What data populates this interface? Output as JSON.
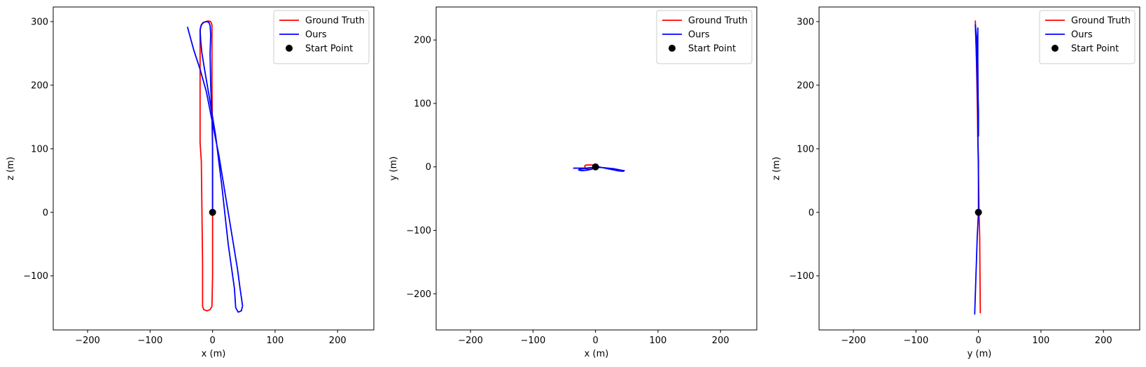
{
  "chart_data": [
    {
      "type": "line",
      "xlabel": "x (m)",
      "ylabel": "z (m)",
      "xlim": [
        -255,
        258
      ],
      "ylim": [
        -185,
        323
      ],
      "xticks": [
        -200,
        -100,
        0,
        100,
        200
      ],
      "yticks": [
        -100,
        0,
        100,
        200,
        300
      ],
      "xtick_labels": [
        "−200",
        "−100",
        "0",
        "100",
        "200"
      ],
      "ytick_labels": [
        "−100",
        "0",
        "100",
        "200",
        "300"
      ],
      "legend": [
        "Ground Truth",
        "Ours",
        "Start Point"
      ],
      "legend_position": "top-right",
      "series": [
        {
          "name": "Ground Truth",
          "color": "#ff0000",
          "points": [
            [
              0,
              0
            ],
            [
              0,
              100
            ],
            [
              -1,
              200
            ],
            [
              -1,
              240
            ],
            [
              -1,
              270
            ],
            [
              -1,
              295
            ],
            [
              -3,
              300
            ],
            [
              -7,
              301
            ],
            [
              -11,
              300
            ],
            [
              -16,
              298
            ],
            [
              -19,
              292
            ],
            [
              -20,
              285
            ],
            [
              -20,
              260
            ],
            [
              -20,
              210
            ],
            [
              -20,
              150
            ],
            [
              -20,
              110
            ],
            [
              -18,
              80
            ],
            [
              -17,
              0
            ],
            [
              -16,
              -80
            ],
            [
              -16,
              -148
            ],
            [
              -14,
              -153
            ],
            [
              -9,
              -155
            ],
            [
              -4,
              -153
            ],
            [
              -1,
              -148
            ],
            [
              0,
              -100
            ],
            [
              0,
              -40
            ],
            [
              0,
              0
            ]
          ]
        },
        {
          "name": "Ours",
          "color": "#0000ff",
          "points": [
            [
              0,
              0
            ],
            [
              0,
              100
            ],
            [
              -1,
              150
            ],
            [
              -3,
              200
            ],
            [
              -4,
              250
            ],
            [
              -3,
              280
            ],
            [
              -4,
              294
            ],
            [
              -6,
              299
            ],
            [
              -10,
              300
            ],
            [
              -14,
              299
            ],
            [
              -18,
              295
            ],
            [
              -20,
              287
            ],
            [
              -19,
              270
            ],
            [
              -17,
              250
            ],
            [
              -12,
              220
            ],
            [
              -5,
              180
            ],
            [
              5,
              120
            ],
            [
              15,
              40
            ],
            [
              25,
              -50
            ],
            [
              35,
              -120
            ],
            [
              37,
              -150
            ],
            [
              41,
              -157
            ],
            [
              46,
              -155
            ],
            [
              48,
              -147
            ],
            [
              44,
              -120
            ],
            [
              40,
              -90
            ],
            [
              30,
              -30
            ],
            [
              20,
              30
            ],
            [
              10,
              90
            ],
            [
              0,
              140
            ],
            [
              -10,
              190
            ],
            [
              -20,
              225
            ],
            [
              -30,
              255
            ],
            [
              -40,
              291
            ]
          ]
        },
        {
          "name": "Start Point",
          "color": "#000000",
          "marker": "circle",
          "points": [
            [
              0,
              0
            ]
          ]
        }
      ]
    },
    {
      "type": "line",
      "xlabel": "x (m)",
      "ylabel": "y (m)",
      "xlim": [
        -255,
        258
      ],
      "ylim": [
        -257,
        252
      ],
      "xticks": [
        -200,
        -100,
        0,
        100,
        200
      ],
      "yticks": [
        -200,
        -100,
        0,
        100,
        200
      ],
      "xtick_labels": [
        "−200",
        "−100",
        "0",
        "100",
        "200"
      ],
      "ytick_labels": [
        "−200",
        "−100",
        "0",
        "100",
        "200"
      ],
      "legend": [
        "Ground Truth",
        "Ours",
        "Start Point"
      ],
      "legend_position": "top-right",
      "series": [
        {
          "name": "Ground Truth",
          "color": "#ff0000",
          "points": [
            [
              0,
              0
            ],
            [
              -1,
              3
            ],
            [
              -5,
              3
            ],
            [
              -10,
              3
            ],
            [
              -15,
              3
            ],
            [
              -17,
              2
            ],
            [
              -17,
              -2
            ],
            [
              -14,
              -4
            ],
            [
              -8,
              -4
            ],
            [
              -3,
              -2
            ],
            [
              0,
              0
            ]
          ]
        },
        {
          "name": "Ours",
          "color": "#0000ff",
          "points": [
            [
              0,
              0
            ],
            [
              -5,
              -1
            ],
            [
              -12,
              -2
            ],
            [
              -20,
              -3
            ],
            [
              -26,
              -4
            ],
            [
              -27,
              -5
            ],
            [
              -22,
              -6
            ],
            [
              -12,
              -5
            ],
            [
              -4,
              -3
            ],
            [
              3,
              -1
            ],
            [
              10,
              -1
            ],
            [
              20,
              -2
            ],
            [
              30,
              -3
            ],
            [
              40,
              -5
            ],
            [
              46,
              -6
            ],
            [
              44,
              -7
            ],
            [
              35,
              -6
            ],
            [
              25,
              -4
            ],
            [
              15,
              -2
            ],
            [
              5,
              0
            ],
            [
              -5,
              -1
            ],
            [
              -15,
              -2
            ],
            [
              -25,
              -2
            ],
            [
              -35,
              -2
            ]
          ]
        },
        {
          "name": "Start Point",
          "color": "#000000",
          "marker": "circle",
          "points": [
            [
              0,
              0
            ]
          ]
        }
      ]
    },
    {
      "type": "line",
      "xlabel": "y (m)",
      "ylabel": "z (m)",
      "xlim": [
        -255,
        258
      ],
      "ylim": [
        -185,
        323
      ],
      "xticks": [
        -200,
        -100,
        0,
        100,
        200
      ],
      "yticks": [
        -100,
        0,
        100,
        200,
        300
      ],
      "xtick_labels": [
        "−200",
        "−100",
        "0",
        "100",
        "200"
      ],
      "ytick_labels": [
        "−100",
        "0",
        "100",
        "200",
        "300"
      ],
      "legend": [
        "Ground Truth",
        "Ours",
        "Start Point"
      ],
      "legend_position": "top-right",
      "series": [
        {
          "name": "Ground Truth",
          "color": "#ff0000",
          "points": [
            [
              3,
              -158
            ],
            [
              2.5,
              -100
            ],
            [
              2,
              -40
            ],
            [
              1,
              0
            ],
            [
              0,
              60
            ],
            [
              -1,
              120
            ],
            [
              -2,
              180
            ],
            [
              -3,
              230
            ],
            [
              -4,
              270
            ],
            [
              -5,
              301
            ]
          ]
        },
        {
          "name": "Ours",
          "color": "#0000ff",
          "points": [
            [
              -6,
              -160
            ],
            [
              -4,
              -100
            ],
            [
              -2,
              -40
            ],
            [
              0,
              0
            ],
            [
              0,
              40
            ],
            [
              0,
              80
            ],
            [
              -1,
              120
            ],
            [
              -1,
              160
            ],
            [
              -2,
              200
            ],
            [
              -3,
              240
            ],
            [
              -4,
              270
            ],
            [
              -5,
              295
            ],
            [
              -3,
              275
            ],
            [
              -2,
              240
            ],
            [
              -1,
              200
            ],
            [
              0,
              160
            ],
            [
              0,
              120
            ],
            [
              -1,
              240
            ],
            [
              -1,
              290
            ]
          ]
        },
        {
          "name": "Start Point",
          "color": "#000000",
          "marker": "circle",
          "points": [
            [
              0,
              0
            ]
          ]
        }
      ]
    }
  ]
}
